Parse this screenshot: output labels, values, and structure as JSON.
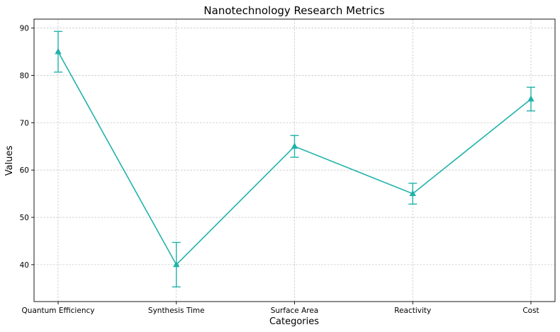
{
  "chart_data": {
    "type": "line",
    "title": "Nanotechnology Research Metrics",
    "xlabel": "Categories",
    "ylabel": "Values",
    "categories": [
      "Quantum Efficiency",
      "Synthesis Time",
      "Surface Area",
      "Reactivity",
      "Cost"
    ],
    "series": [
      {
        "values": [
          85,
          40,
          65,
          55,
          75
        ],
        "errors": [
          4.3,
          4.7,
          2.3,
          2.2,
          2.5
        ]
      }
    ],
    "yticks": [
      40,
      50,
      60,
      70,
      80,
      90
    ],
    "ylim": [
      32.2,
      91.9
    ],
    "grid": true,
    "marker": "triangle",
    "color": "#20b2aa"
  }
}
